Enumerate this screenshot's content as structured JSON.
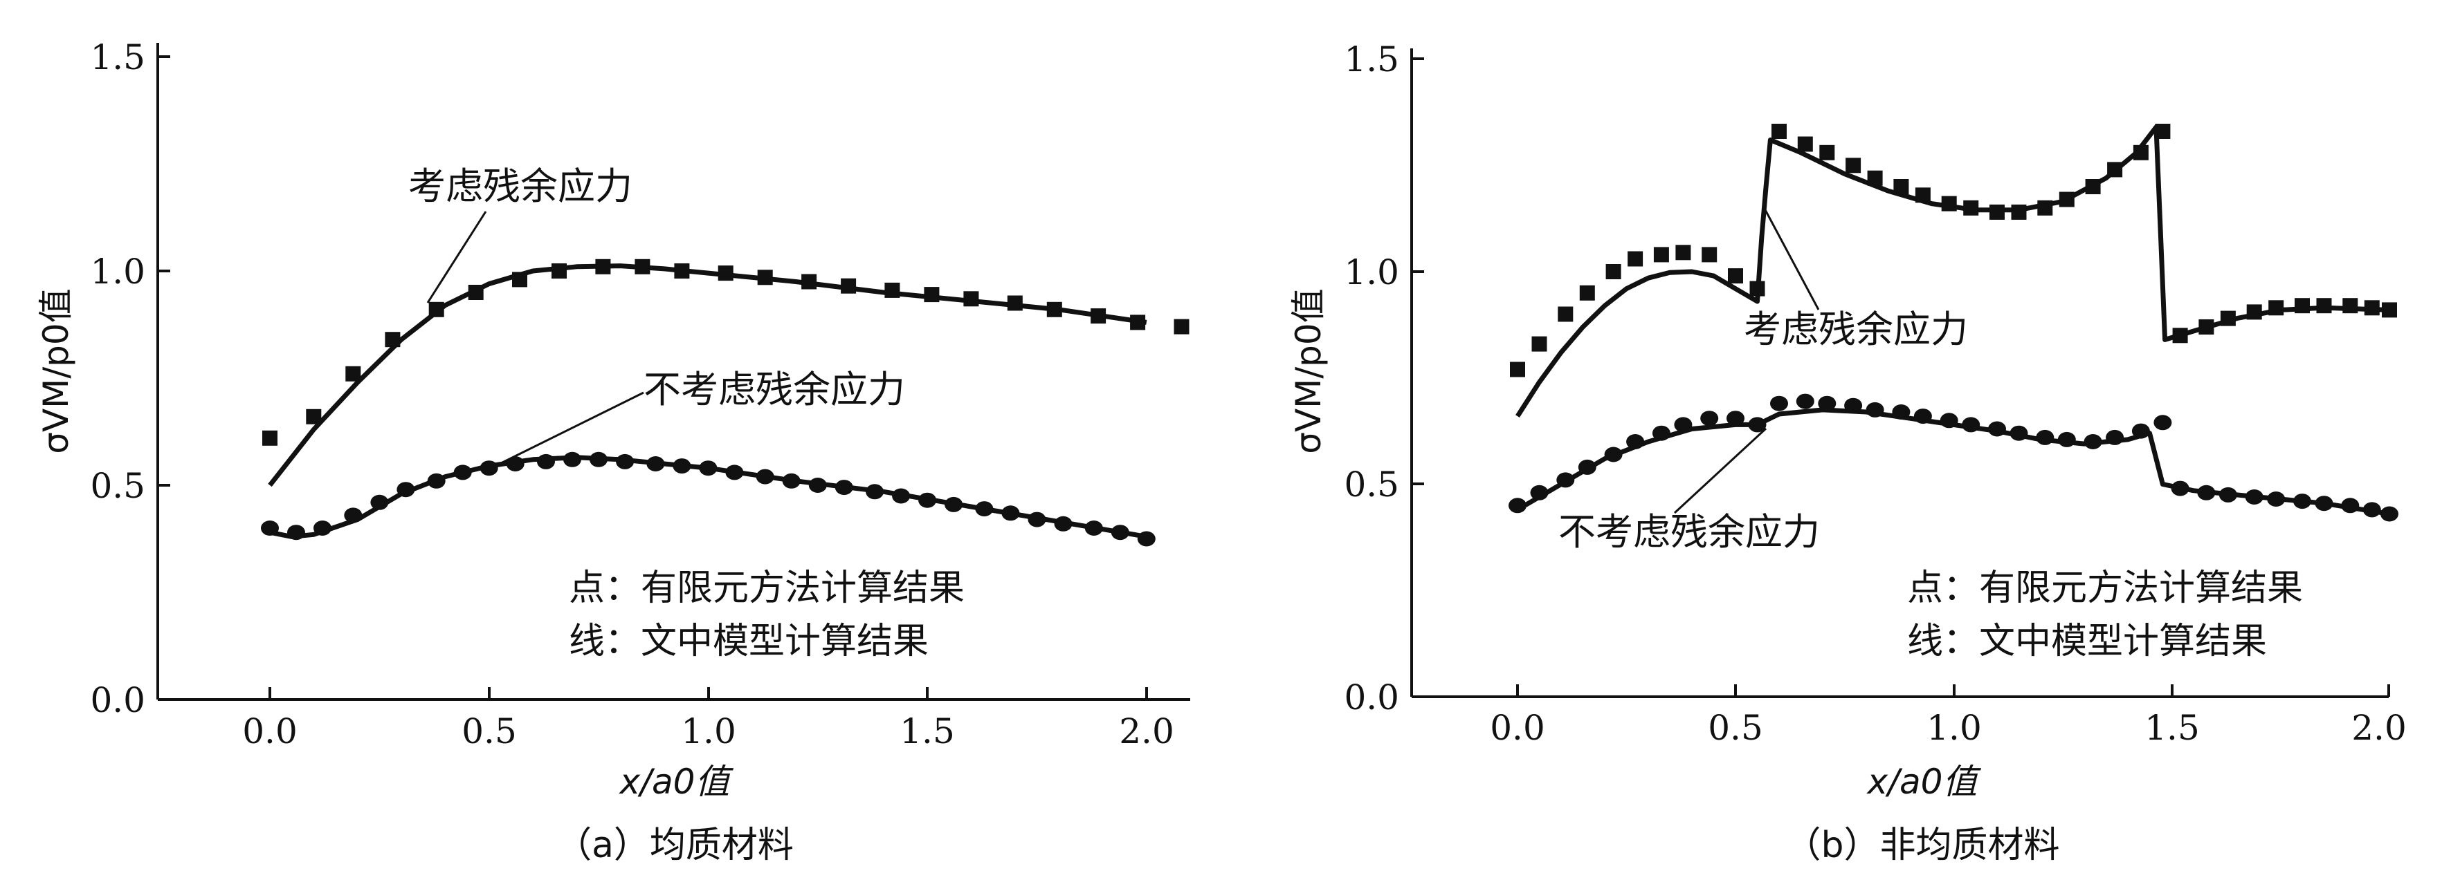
{
  "chart_data": [
    {
      "type": "line",
      "caption": "（a）均质材料",
      "xlabel": "x/a0值",
      "ylabel": "σVM/p0值",
      "xlim": [
        -0.25,
        2.1
      ],
      "ylim": [
        0.0,
        1.5
      ],
      "xticks": [
        "0.0",
        "0.5",
        "1.0",
        "1.5",
        "2.0"
      ],
      "yticks": [
        "0.0",
        "0.5",
        "1.0",
        "1.5"
      ],
      "legend_text": [
        "点：有限元方法计算结果",
        "线：文中模型计算结果"
      ],
      "series": [
        {
          "name": "考虑残余应力",
          "marker": "square",
          "points": [
            [
              0.0,
              0.61
            ],
            [
              0.1,
              0.66
            ],
            [
              0.19,
              0.76
            ],
            [
              0.28,
              0.84
            ],
            [
              0.38,
              0.91
            ],
            [
              0.47,
              0.95
            ],
            [
              0.57,
              0.98
            ],
            [
              0.66,
              1.0
            ],
            [
              0.76,
              1.01
            ],
            [
              0.85,
              1.01
            ],
            [
              0.94,
              1.0
            ],
            [
              1.04,
              0.995
            ],
            [
              1.13,
              0.985
            ],
            [
              1.23,
              0.975
            ],
            [
              1.32,
              0.965
            ],
            [
              1.42,
              0.955
            ],
            [
              1.51,
              0.945
            ],
            [
              1.6,
              0.935
            ],
            [
              1.7,
              0.925
            ],
            [
              1.79,
              0.91
            ],
            [
              1.89,
              0.895
            ],
            [
              1.98,
              0.88
            ],
            [
              2.08,
              0.87
            ]
          ],
          "curve": [
            [
              0.0,
              0.5
            ],
            [
              0.1,
              0.63
            ],
            [
              0.2,
              0.74
            ],
            [
              0.3,
              0.84
            ],
            [
              0.4,
              0.92
            ],
            [
              0.5,
              0.97
            ],
            [
              0.6,
              1.0
            ],
            [
              0.7,
              1.01
            ],
            [
              0.8,
              1.012
            ],
            [
              0.9,
              1.005
            ],
            [
              1.0,
              0.995
            ],
            [
              1.2,
              0.975
            ],
            [
              1.4,
              0.95
            ],
            [
              1.6,
              0.93
            ],
            [
              1.8,
              0.91
            ],
            [
              2.0,
              0.88
            ]
          ]
        },
        {
          "name": "不考虑残余应力",
          "marker": "circle",
          "points": [
            [
              0.0,
              0.4
            ],
            [
              0.06,
              0.39
            ],
            [
              0.12,
              0.4
            ],
            [
              0.19,
              0.43
            ],
            [
              0.25,
              0.46
            ],
            [
              0.31,
              0.49
            ],
            [
              0.38,
              0.51
            ],
            [
              0.44,
              0.53
            ],
            [
              0.5,
              0.54
            ],
            [
              0.56,
              0.55
            ],
            [
              0.63,
              0.555
            ],
            [
              0.69,
              0.56
            ],
            [
              0.75,
              0.56
            ],
            [
              0.81,
              0.555
            ],
            [
              0.88,
              0.55
            ],
            [
              0.94,
              0.545
            ],
            [
              1.0,
              0.54
            ],
            [
              1.06,
              0.53
            ],
            [
              1.13,
              0.52
            ],
            [
              1.19,
              0.51
            ],
            [
              1.25,
              0.5
            ],
            [
              1.31,
              0.495
            ],
            [
              1.38,
              0.485
            ],
            [
              1.44,
              0.475
            ],
            [
              1.5,
              0.465
            ],
            [
              1.56,
              0.455
            ],
            [
              1.63,
              0.445
            ],
            [
              1.69,
              0.435
            ],
            [
              1.75,
              0.42
            ],
            [
              1.81,
              0.41
            ],
            [
              1.88,
              0.4
            ],
            [
              1.94,
              0.39
            ],
            [
              2.0,
              0.375
            ]
          ],
          "curve": [
            [
              0.0,
              0.39
            ],
            [
              0.05,
              0.38
            ],
            [
              0.1,
              0.385
            ],
            [
              0.2,
              0.42
            ],
            [
              0.3,
              0.48
            ],
            [
              0.4,
              0.52
            ],
            [
              0.5,
              0.545
            ],
            [
              0.6,
              0.56
            ],
            [
              0.7,
              0.565
            ],
            [
              0.8,
              0.56
            ],
            [
              0.9,
              0.55
            ],
            [
              1.0,
              0.54
            ],
            [
              1.2,
              0.51
            ],
            [
              1.4,
              0.485
            ],
            [
              1.6,
              0.45
            ],
            [
              1.8,
              0.415
            ],
            [
              2.0,
              0.38
            ]
          ]
        }
      ]
    },
    {
      "type": "line",
      "caption": "（b）非均质材料",
      "xlabel": "x/a0值",
      "ylabel": "σVM/p0值",
      "xlim": [
        -0.25,
        2.0
      ],
      "ylim": [
        0.0,
        1.5
      ],
      "xticks": [
        "0.0",
        "0.5",
        "1.0",
        "1.5",
        "2.0"
      ],
      "yticks": [
        "0.0",
        "0.5",
        "1.0",
        "1.5"
      ],
      "legend_text": [
        "点：有限元方法计算结果",
        "线：文中模型计算结果"
      ],
      "series": [
        {
          "name": "考虑残余应力",
          "marker": "square",
          "points": [
            [
              0.0,
              0.77
            ],
            [
              0.05,
              0.83
            ],
            [
              0.11,
              0.9
            ],
            [
              0.16,
              0.95
            ],
            [
              0.22,
              1.0
            ],
            [
              0.27,
              1.03
            ],
            [
              0.33,
              1.04
            ],
            [
              0.38,
              1.045
            ],
            [
              0.44,
              1.04
            ],
            [
              0.5,
              0.99
            ],
            [
              0.55,
              0.96
            ],
            [
              0.6,
              1.33
            ],
            [
              0.66,
              1.3
            ],
            [
              0.71,
              1.28
            ],
            [
              0.77,
              1.25
            ],
            [
              0.82,
              1.22
            ],
            [
              0.88,
              1.2
            ],
            [
              0.93,
              1.18
            ],
            [
              0.99,
              1.16
            ],
            [
              1.04,
              1.15
            ],
            [
              1.1,
              1.14
            ],
            [
              1.15,
              1.14
            ],
            [
              1.21,
              1.15
            ],
            [
              1.26,
              1.17
            ],
            [
              1.32,
              1.2
            ],
            [
              1.37,
              1.24
            ],
            [
              1.43,
              1.28
            ],
            [
              1.48,
              1.33
            ],
            [
              1.52,
              0.85
            ],
            [
              1.58,
              0.87
            ],
            [
              1.63,
              0.89
            ],
            [
              1.69,
              0.905
            ],
            [
              1.74,
              0.915
            ],
            [
              1.8,
              0.92
            ],
            [
              1.85,
              0.92
            ],
            [
              1.91,
              0.92
            ],
            [
              1.96,
              0.915
            ],
            [
              2.0,
              0.91
            ]
          ],
          "curve": [
            [
              0.0,
              0.66
            ],
            [
              0.05,
              0.74
            ],
            [
              0.1,
              0.81
            ],
            [
              0.15,
              0.87
            ],
            [
              0.2,
              0.92
            ],
            [
              0.25,
              0.96
            ],
            [
              0.3,
              0.985
            ],
            [
              0.35,
              0.998
            ],
            [
              0.4,
              1.0
            ],
            [
              0.45,
              0.99
            ],
            [
              0.5,
              0.96
            ],
            [
              0.55,
              0.93
            ],
            [
              0.56,
              1.08
            ],
            [
              0.57,
              1.2
            ],
            [
              0.58,
              1.31
            ],
            [
              0.65,
              1.28
            ],
            [
              0.75,
              1.23
            ],
            [
              0.85,
              1.19
            ],
            [
              0.95,
              1.16
            ],
            [
              1.05,
              1.145
            ],
            [
              1.15,
              1.145
            ],
            [
              1.25,
              1.165
            ],
            [
              1.35,
              1.22
            ],
            [
              1.42,
              1.28
            ],
            [
              1.465,
              1.34
            ],
            [
              1.475,
              1.09
            ],
            [
              1.485,
              0.84
            ],
            [
              1.55,
              0.86
            ],
            [
              1.65,
              0.89
            ],
            [
              1.75,
              0.91
            ],
            [
              1.85,
              0.915
            ],
            [
              2.0,
              0.91
            ]
          ]
        },
        {
          "name": "不考虑残余应力",
          "marker": "circle",
          "points": [
            [
              0.0,
              0.45
            ],
            [
              0.05,
              0.48
            ],
            [
              0.11,
              0.51
            ],
            [
              0.16,
              0.54
            ],
            [
              0.22,
              0.57
            ],
            [
              0.27,
              0.6
            ],
            [
              0.33,
              0.62
            ],
            [
              0.38,
              0.64
            ],
            [
              0.44,
              0.655
            ],
            [
              0.5,
              0.655
            ],
            [
              0.55,
              0.64
            ],
            [
              0.6,
              0.69
            ],
            [
              0.66,
              0.695
            ],
            [
              0.71,
              0.69
            ],
            [
              0.77,
              0.685
            ],
            [
              0.82,
              0.675
            ],
            [
              0.88,
              0.67
            ],
            [
              0.93,
              0.66
            ],
            [
              0.99,
              0.65
            ],
            [
              1.04,
              0.64
            ],
            [
              1.1,
              0.63
            ],
            [
              1.15,
              0.62
            ],
            [
              1.21,
              0.61
            ],
            [
              1.26,
              0.605
            ],
            [
              1.32,
              0.6
            ],
            [
              1.37,
              0.61
            ],
            [
              1.43,
              0.625
            ],
            [
              1.48,
              0.645
            ],
            [
              1.52,
              0.49
            ],
            [
              1.58,
              0.48
            ],
            [
              1.63,
              0.475
            ],
            [
              1.69,
              0.47
            ],
            [
              1.74,
              0.465
            ],
            [
              1.8,
              0.46
            ],
            [
              1.85,
              0.455
            ],
            [
              1.91,
              0.45
            ],
            [
              1.96,
              0.44
            ],
            [
              2.0,
              0.43
            ]
          ],
          "curve": [
            [
              0.0,
              0.44
            ],
            [
              0.1,
              0.5
            ],
            [
              0.2,
              0.56
            ],
            [
              0.3,
              0.6
            ],
            [
              0.4,
              0.63
            ],
            [
              0.5,
              0.64
            ],
            [
              0.55,
              0.64
            ],
            [
              0.6,
              0.665
            ],
            [
              0.7,
              0.675
            ],
            [
              0.8,
              0.67
            ],
            [
              0.9,
              0.655
            ],
            [
              1.0,
              0.64
            ],
            [
              1.1,
              0.625
            ],
            [
              1.2,
              0.605
            ],
            [
              1.3,
              0.595
            ],
            [
              1.4,
              0.605
            ],
            [
              1.45,
              0.62
            ],
            [
              1.48,
              0.5
            ],
            [
              1.55,
              0.485
            ],
            [
              1.7,
              0.47
            ],
            [
              1.85,
              0.455
            ],
            [
              2.0,
              0.43
            ]
          ]
        }
      ]
    }
  ]
}
